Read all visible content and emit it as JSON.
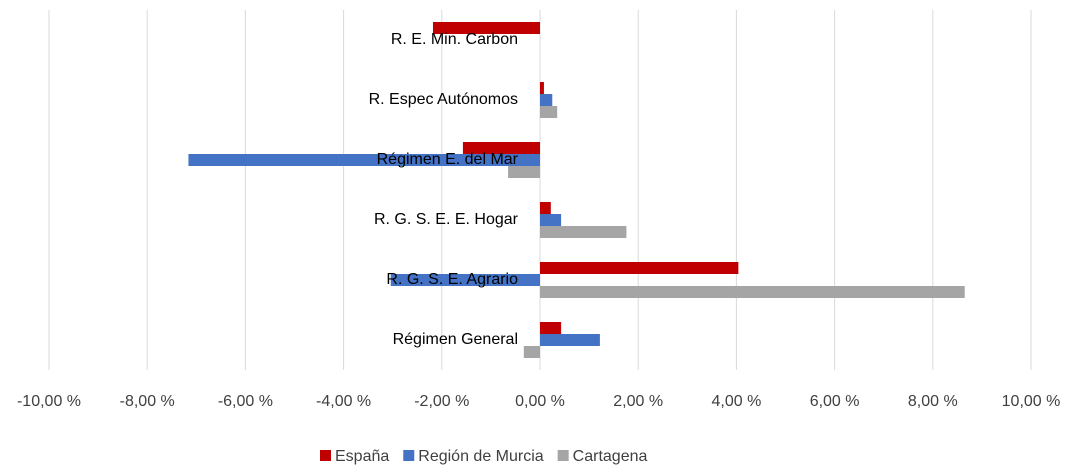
{
  "chart_data": {
    "type": "hbar",
    "categories": [
      "R. E. Min. Carbon",
      "R. Espec Autónomos",
      "Régimen E. del Mar",
      "R. G. S. E. E. Hogar",
      "R. G. S. E. Agrario",
      "Régimen General"
    ],
    "series": [
      {
        "name": "España",
        "color": "#c00000",
        "values": [
          -2.18,
          0.08,
          -1.57,
          0.22,
          4.04,
          0.43
        ]
      },
      {
        "name": "Región de Murcia",
        "color": "#4472c4",
        "values": [
          null,
          0.25,
          -7.16,
          0.43,
          -3.04,
          1.22
        ]
      },
      {
        "name": "Cartagena",
        "color": "#a5a5a5",
        "values": [
          null,
          0.35,
          -0.65,
          1.76,
          8.65,
          -0.33
        ]
      }
    ],
    "xlim": [
      -10,
      10
    ],
    "xticks": [
      {
        "value": -10,
        "label": "-10,00 %"
      },
      {
        "value": -8,
        "label": "-8,00 %"
      },
      {
        "value": -6,
        "label": "-6,00 %"
      },
      {
        "value": -4,
        "label": "-4,00 %"
      },
      {
        "value": -2,
        "label": "-2,00 %"
      },
      {
        "value": 0,
        "label": "0,00 %"
      },
      {
        "value": 2,
        "label": "2,00 %"
      },
      {
        "value": 4,
        "label": "4,00 %"
      },
      {
        "value": 6,
        "label": "6,00 %"
      },
      {
        "value": 8,
        "label": "8,00 %"
      },
      {
        "value": 10,
        "label": "10,00 %"
      }
    ],
    "grid": true,
    "legend": "bottom"
  }
}
